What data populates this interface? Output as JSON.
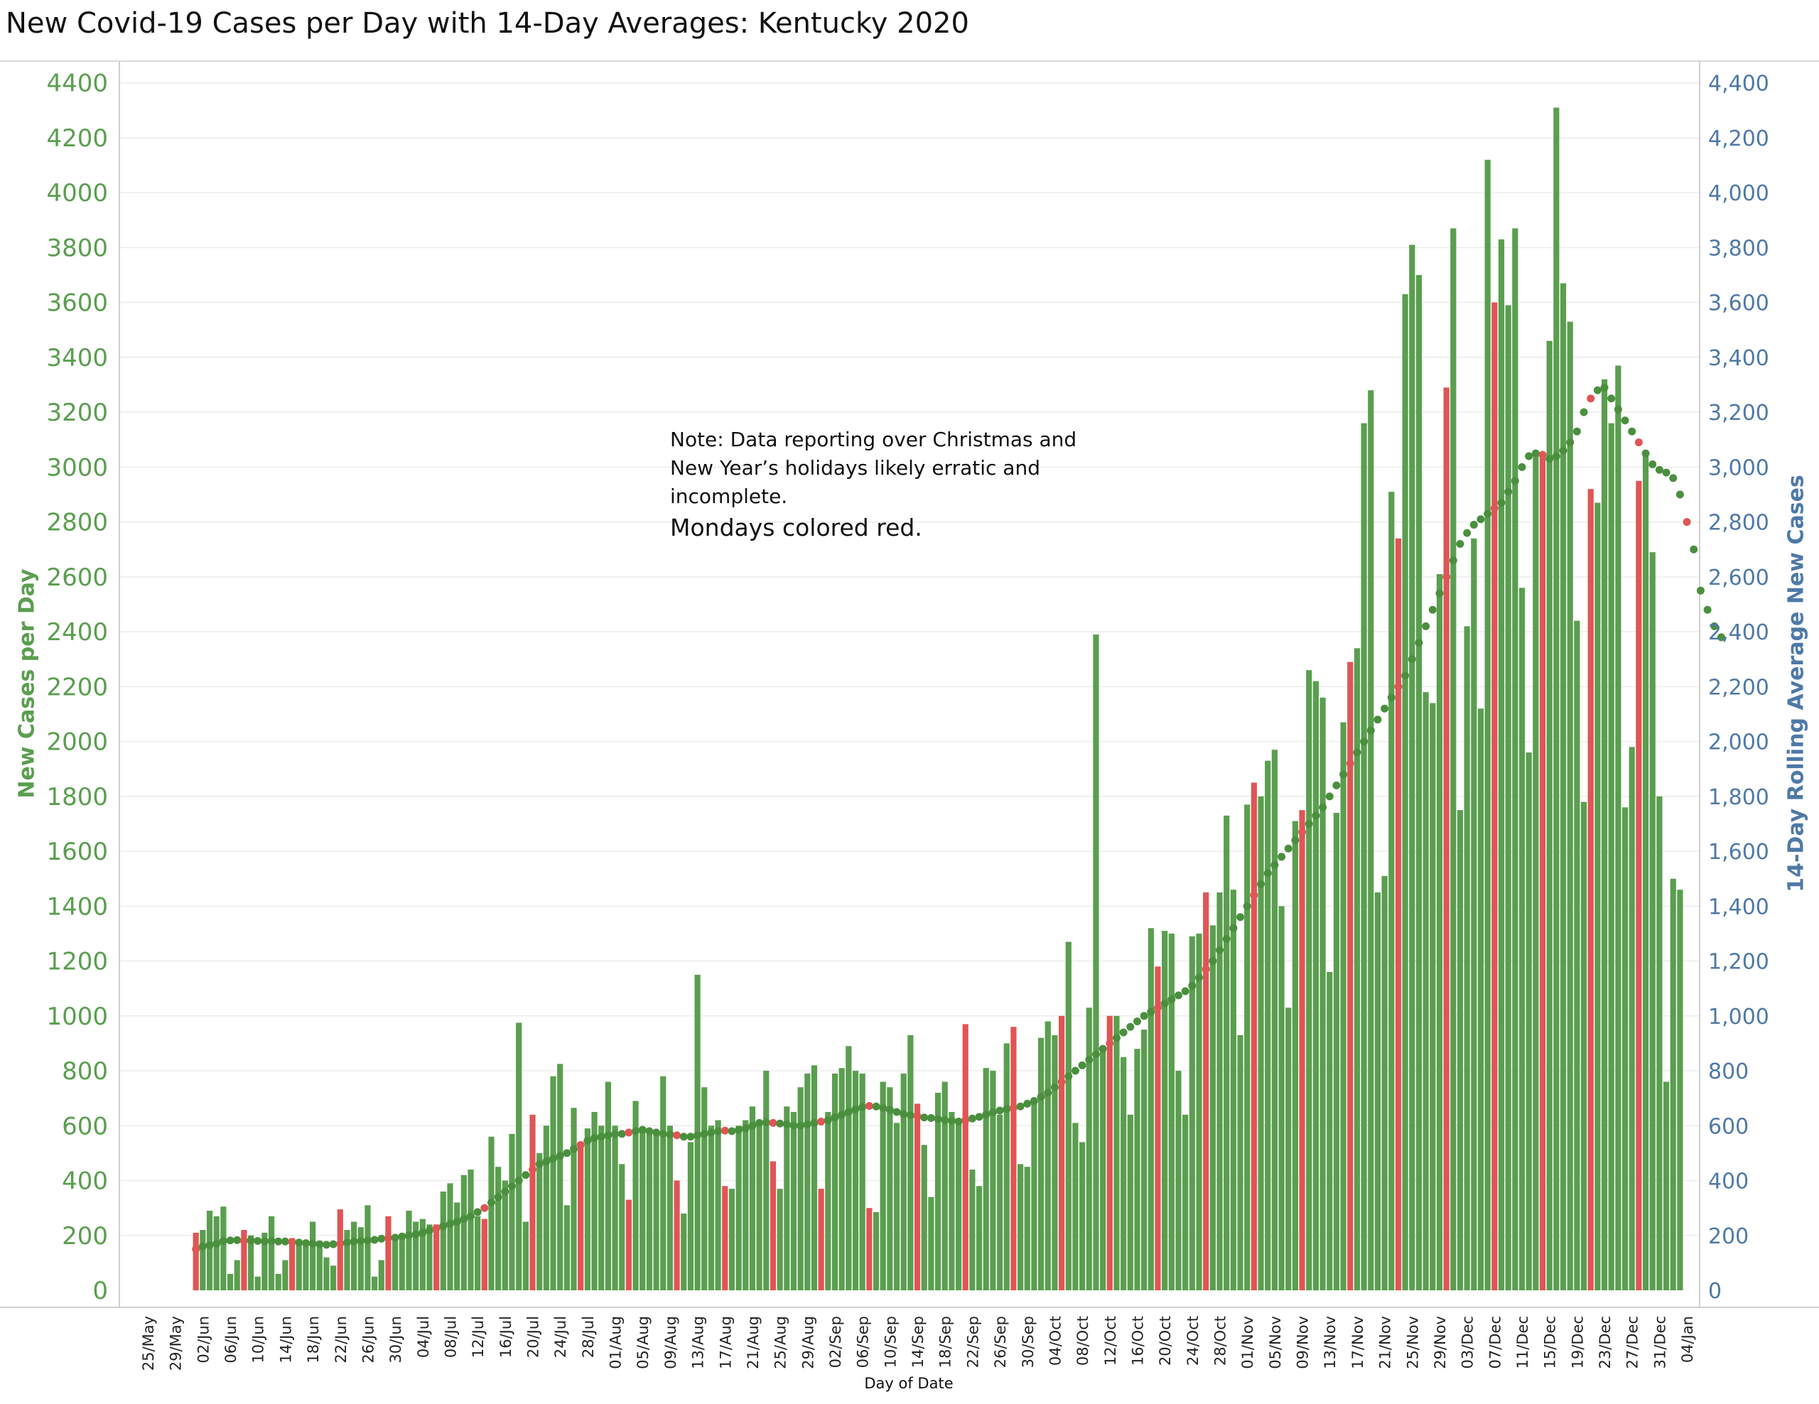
{
  "chart_data": {
    "type": "bar",
    "title": "New Covid-19 Cases per Day with 14-Day Averages: Kentucky  2020",
    "xlabel": "Day of Date",
    "ylabel": "New Cases per Day",
    "y2label": "14-Day Rolling Average New Cases",
    "ylim": [
      0,
      4500
    ],
    "y2lim": [
      0,
      4500
    ],
    "left_ticks": [
      "0",
      "200",
      "400",
      "600",
      "800",
      "1000",
      "1200",
      "1400",
      "1600",
      "1800",
      "2000",
      "2200",
      "2400",
      "2600",
      "2800",
      "3000",
      "3200",
      "3400",
      "3600",
      "3800",
      "4000",
      "4200",
      "4400"
    ],
    "right_ticks": [
      "0",
      "200",
      "400",
      "600",
      "800",
      "1,000",
      "1,200",
      "1,400",
      "1,600",
      "1,800",
      "2,000",
      "2,200",
      "2,400",
      "2,600",
      "2,800",
      "3,000",
      "3,200",
      "3,400",
      "3,600",
      "3,800",
      "4,000",
      "4,200",
      "4,400"
    ],
    "x_ticks": [
      "25/May",
      "29/May",
      "02/Jun",
      "06/Jun",
      "10/Jun",
      "14/Jun",
      "18/Jun",
      "22/Jun",
      "26/Jun",
      "30/Jun",
      "04/Jul",
      "08/Jul",
      "12/Jul",
      "16/Jul",
      "20/Jul",
      "24/Jul",
      "28/Jul",
      "01/Aug",
      "05/Aug",
      "09/Aug",
      "13/Aug",
      "17/Aug",
      "21/Aug",
      "25/Aug",
      "29/Aug",
      "02/Sep",
      "06/Sep",
      "10/Sep",
      "14/Sep",
      "18/Sep",
      "22/Sep",
      "26/Sep",
      "30/Sep",
      "04/Oct",
      "08/Oct",
      "12/Oct",
      "16/Oct",
      "20/Oct",
      "24/Oct",
      "28/Oct",
      "01/Nov",
      "05/Nov",
      "09/Nov",
      "13/Nov",
      "17/Nov",
      "21/Nov",
      "25/Nov",
      "29/Nov",
      "03/Dec",
      "07/Dec",
      "11/Dec",
      "15/Dec",
      "19/Dec",
      "23/Dec",
      "27/Dec",
      "31/Dec",
      "04/Jan"
    ],
    "first_date": "01/Jun",
    "grid": true,
    "series": [
      {
        "name": "New Cases per Day",
        "values": [
          210,
          220,
          290,
          270,
          305,
          60,
          110,
          220,
          200,
          50,
          210,
          270,
          60,
          110,
          190,
          170,
          170,
          250,
          180,
          120,
          90,
          295,
          220,
          250,
          230,
          310,
          50,
          110,
          270,
          200,
          200,
          290,
          250,
          260,
          240,
          240,
          360,
          390,
          320,
          420,
          440,
          270,
          260,
          560,
          450,
          400,
          570,
          975,
          250,
          640,
          500,
          600,
          780,
          825,
          310,
          665,
          520,
          590,
          650,
          600,
          760,
          600,
          460,
          330,
          690,
          580,
          570,
          570,
          780,
          600,
          400,
          280,
          540,
          1150,
          740,
          600,
          620,
          380,
          370,
          600,
          620,
          670,
          600,
          800,
          470,
          370,
          670,
          650,
          740,
          790,
          820,
          370,
          650,
          790,
          810,
          890,
          800,
          790,
          300,
          285,
          760,
          740,
          610,
          790,
          930,
          680,
          530,
          340,
          720,
          760,
          650,
          620,
          970,
          440,
          380,
          810,
          800,
          640,
          900,
          960,
          460,
          450,
          700,
          920,
          980,
          930,
          1000,
          1270,
          610,
          540,
          1030,
          2390,
          870,
          1000,
          1000,
          850,
          640,
          880,
          950,
          1320,
          1180,
          1310,
          1300,
          800,
          640,
          1290,
          1300,
          1450,
          1330,
          1450,
          1730,
          1460,
          930,
          1770,
          1850,
          1800,
          1930,
          1970,
          1400,
          1030,
          1710,
          1750,
          2260,
          2220,
          2160,
          1160,
          1740,
          2070,
          2290,
          2340,
          3160,
          3280,
          1450,
          1510,
          2910,
          2740,
          3630,
          3810,
          3700,
          2180,
          2140,
          2610,
          3290,
          3870,
          1750,
          2420,
          2740,
          2120,
          4120,
          3600,
          3830,
          3590,
          3870,
          2560,
          1960,
          3050,
          3050,
          3460,
          4310,
          3670,
          3530,
          2440,
          1780,
          2920,
          2870,
          3320,
          3160,
          3370,
          1760,
          1980,
          2950,
          3040,
          2690,
          1800,
          760,
          1500,
          1460
        ]
      },
      {
        "name": "14-Day Rolling Average New Cases",
        "values": [
          150,
          160,
          165,
          170,
          180,
          182,
          183,
          180,
          182,
          180,
          178,
          180,
          178,
          178,
          176,
          174,
          172,
          170,
          168,
          166,
          168,
          170,
          174,
          178,
          180,
          182,
          184,
          188,
          190,
          192,
          196,
          200,
          204,
          210,
          218,
          226,
          234,
          242,
          250,
          260,
          270,
          285,
          300,
          320,
          340,
          360,
          380,
          400,
          420,
          440,
          460,
          470,
          480,
          490,
          500,
          515,
          530,
          545,
          555,
          560,
          565,
          570,
          570,
          575,
          580,
          585,
          580,
          575,
          570,
          568,
          565,
          560,
          560,
          565,
          570,
          575,
          580,
          582,
          580,
          585,
          590,
          600,
          610,
          612,
          610,
          608,
          605,
          600,
          600,
          605,
          610,
          615,
          620,
          630,
          640,
          650,
          660,
          668,
          672,
          670,
          665,
          658,
          650,
          642,
          638,
          635,
          630,
          628,
          625,
          620,
          618,
          615,
          620,
          626,
          632,
          640,
          648,
          655,
          660,
          665,
          670,
          680,
          690,
          705,
          720,
          740,
          760,
          780,
          800,
          820,
          840,
          860,
          880,
          900,
          920,
          940,
          960,
          980,
          1000,
          1015,
          1030,
          1045,
          1060,
          1075,
          1090,
          1110,
          1140,
          1170,
          1200,
          1240,
          1280,
          1320,
          1360,
          1400,
          1440,
          1480,
          1520,
          1550,
          1580,
          1610,
          1640,
          1670,
          1700,
          1730,
          1760,
          1800,
          1840,
          1880,
          1920,
          1960,
          2000,
          2040,
          2080,
          2120,
          2160,
          2200,
          2240,
          2300,
          2360,
          2420,
          2480,
          2540,
          2600,
          2660,
          2720,
          2760,
          2790,
          2810,
          2830,
          2850,
          2870,
          2910,
          2950,
          3000,
          3040,
          3050,
          3045,
          3030,
          3040,
          3060,
          3090,
          3130,
          3200,
          3250,
          3280,
          3290,
          3250,
          3210,
          3170,
          3130,
          3090,
          3050,
          3010,
          2990,
          2980,
          2960,
          2900,
          2800,
          2700,
          2550,
          2480,
          2420,
          2380
        ]
      }
    ],
    "mondays_colored": "red",
    "colors": {
      "bar": "#5a9e4f",
      "bar_monday": "#e05555",
      "dot": "#4a8f3e",
      "dot_monday": "#e05555",
      "left_axis": "#5a9e4f",
      "right_axis": "#4e79a7"
    }
  },
  "note": {
    "line1": "Note: Data reporting over Christmas and",
    "line2": "New Year’s holidays likely erratic and",
    "line3": "incomplete.",
    "line4": "Mondays colored red."
  }
}
